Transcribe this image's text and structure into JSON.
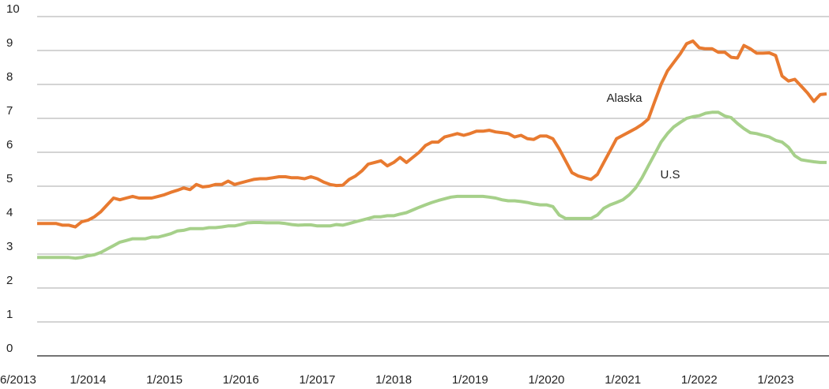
{
  "chart_data": {
    "type": "line",
    "categories": [
      "6/2013",
      null,
      null,
      null,
      null,
      null,
      null,
      "1/2014",
      null,
      null,
      null,
      null,
      null,
      null,
      null,
      null,
      null,
      null,
      null,
      "1/2015",
      null,
      null,
      null,
      null,
      null,
      null,
      null,
      null,
      null,
      null,
      null,
      "1/2016",
      null,
      null,
      null,
      null,
      null,
      null,
      null,
      null,
      null,
      null,
      null,
      "1/2017",
      null,
      null,
      null,
      null,
      null,
      null,
      null,
      null,
      null,
      null,
      null,
      "1/2018",
      null,
      null,
      null,
      null,
      null,
      null,
      null,
      null,
      null,
      null,
      null,
      "1/2019",
      null,
      null,
      null,
      null,
      null,
      null,
      null,
      null,
      null,
      null,
      null,
      "1/2020",
      null,
      null,
      null,
      null,
      null,
      null,
      null,
      null,
      null,
      null,
      null,
      "1/2021",
      null,
      null,
      null,
      null,
      null,
      null,
      null,
      null,
      null,
      null,
      null,
      "1/2022",
      null,
      null,
      null,
      null,
      null,
      null,
      null,
      null,
      null,
      null,
      null,
      "1/2023",
      null,
      null,
      null,
      null,
      null,
      null,
      null,
      null,
      null
    ],
    "series": [
      {
        "name": "Alaska",
        "color": "#e87a30",
        "values": [
          3.9,
          3.9,
          3.9,
          3.9,
          3.85,
          3.85,
          3.8,
          3.95,
          4.0,
          4.1,
          4.25,
          4.45,
          4.65,
          4.6,
          4.65,
          4.7,
          4.65,
          4.65,
          4.65,
          4.7,
          4.75,
          4.82,
          4.88,
          4.95,
          4.9,
          5.05,
          4.98,
          5.0,
          5.05,
          5.05,
          5.15,
          5.05,
          5.1,
          5.15,
          5.2,
          5.22,
          5.22,
          5.25,
          5.28,
          5.28,
          5.25,
          5.25,
          5.22,
          5.28,
          5.22,
          5.12,
          5.05,
          5.02,
          5.03,
          5.2,
          5.3,
          5.45,
          5.65,
          5.7,
          5.75,
          5.6,
          5.7,
          5.85,
          5.7,
          5.85,
          6.0,
          6.2,
          6.3,
          6.3,
          6.45,
          6.5,
          6.55,
          6.5,
          6.55,
          6.62,
          6.62,
          6.65,
          6.6,
          6.58,
          6.55,
          6.45,
          6.5,
          6.4,
          6.38,
          6.48,
          6.48,
          6.4,
          6.1,
          5.75,
          5.4,
          5.3,
          5.25,
          5.2,
          5.35,
          5.7,
          6.05,
          6.4,
          6.5,
          6.6,
          6.7,
          6.82,
          6.98,
          7.5,
          8.0,
          8.4,
          8.65,
          8.9,
          9.2,
          9.28,
          9.08,
          9.05,
          9.05,
          8.95,
          8.95,
          8.8,
          8.78,
          9.15,
          9.05,
          8.92,
          8.92,
          8.93,
          8.85,
          8.25,
          8.1,
          8.15,
          7.95,
          7.75,
          7.5,
          7.7,
          7.72
        ]
      },
      {
        "name": "U.S",
        "color": "#a6d08a",
        "values": [
          2.9,
          2.9,
          2.9,
          2.9,
          2.9,
          2.9,
          2.88,
          2.9,
          2.95,
          2.98,
          3.05,
          3.15,
          3.25,
          3.35,
          3.4,
          3.45,
          3.45,
          3.45,
          3.5,
          3.5,
          3.55,
          3.6,
          3.68,
          3.7,
          3.75,
          3.75,
          3.75,
          3.78,
          3.78,
          3.8,
          3.83,
          3.83,
          3.87,
          3.92,
          3.93,
          3.93,
          3.92,
          3.92,
          3.92,
          3.9,
          3.87,
          3.85,
          3.86,
          3.86,
          3.83,
          3.83,
          3.83,
          3.87,
          3.85,
          3.9,
          3.95,
          4.0,
          4.05,
          4.1,
          4.1,
          4.13,
          4.13,
          4.18,
          4.22,
          4.3,
          4.38,
          4.45,
          4.52,
          4.58,
          4.63,
          4.68,
          4.7,
          4.7,
          4.7,
          4.7,
          4.7,
          4.68,
          4.65,
          4.6,
          4.57,
          4.57,
          4.55,
          4.52,
          4.48,
          4.45,
          4.45,
          4.4,
          4.15,
          4.05,
          4.05,
          4.05,
          4.05,
          4.05,
          4.15,
          4.35,
          4.45,
          4.52,
          4.6,
          4.75,
          4.95,
          5.25,
          5.6,
          5.95,
          6.3,
          6.55,
          6.75,
          6.88,
          7.0,
          7.05,
          7.08,
          7.15,
          7.18,
          7.18,
          7.07,
          7.02,
          6.85,
          6.7,
          6.58,
          6.55,
          6.5,
          6.45,
          6.35,
          6.3,
          6.15,
          5.9,
          5.78,
          5.75,
          5.72,
          5.7,
          5.7
        ]
      }
    ],
    "ylim": [
      0,
      10
    ],
    "yticks": [
      0,
      1,
      2,
      3,
      4,
      5,
      6,
      7,
      8,
      9,
      10
    ],
    "grid": true
  }
}
